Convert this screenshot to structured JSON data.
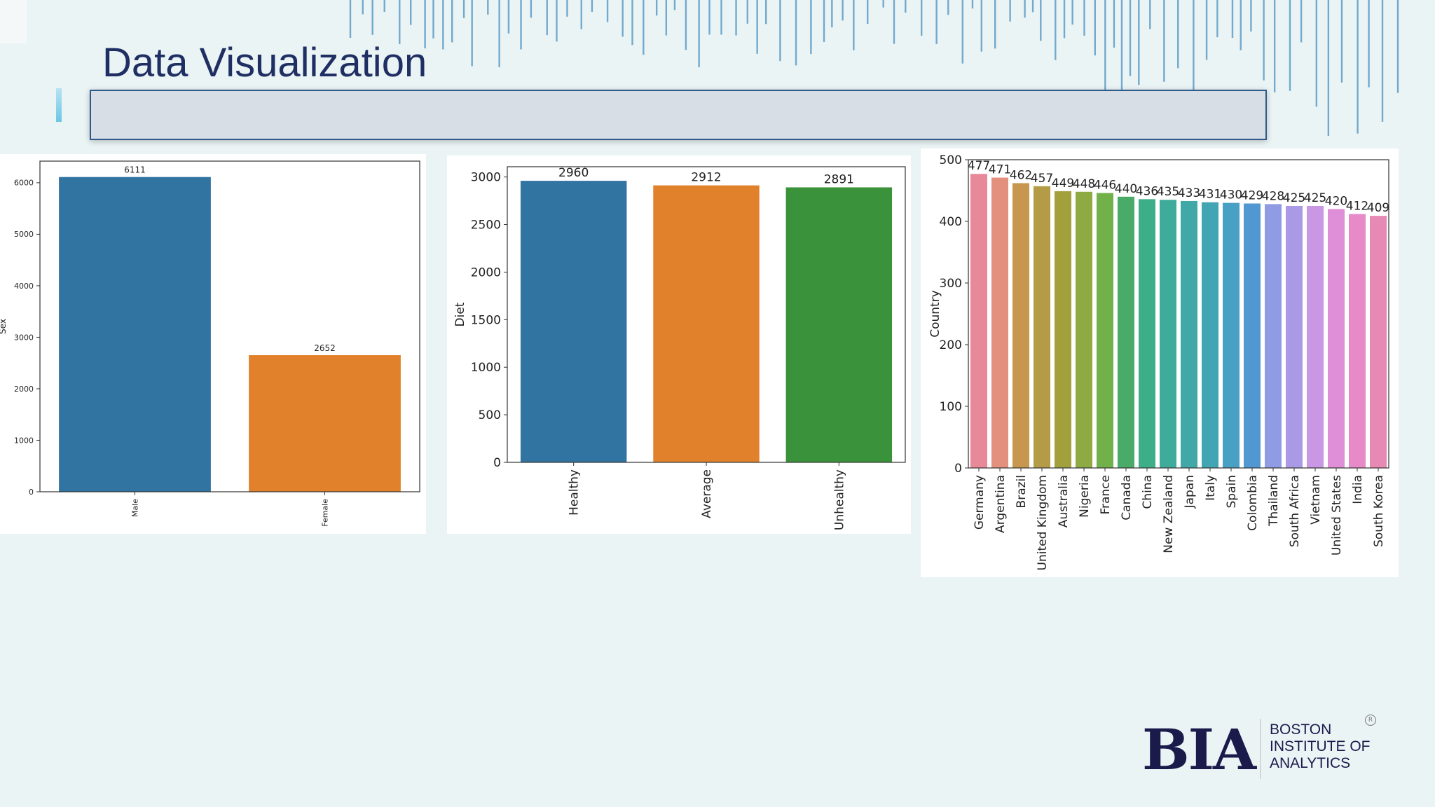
{
  "slide": {
    "title": "Data Visualization"
  },
  "logo": {
    "mark": "BIA",
    "lines": [
      "BOSTON",
      "INSTITUTE OF",
      "ANALYTICS"
    ],
    "registered": "R"
  },
  "chart_data": [
    {
      "type": "bar",
      "categories": [
        "Male",
        "Female"
      ],
      "values": [
        6111,
        2652
      ],
      "colors": [
        "#3274a1",
        "#e1812c"
      ],
      "ylabel": "Sex",
      "xlabel": "",
      "ylim": [
        0,
        6420
      ],
      "yticks": [
        0,
        1000,
        2000,
        3000,
        4000,
        5000,
        6000
      ],
      "data_labels": true,
      "grid": false
    },
    {
      "type": "bar",
      "categories": [
        "Healthy",
        "Average",
        "Unhealthy"
      ],
      "values": [
        2960,
        2912,
        2891
      ],
      "colors": [
        "#3274a1",
        "#e1812c",
        "#3a923a"
      ],
      "ylabel": "Diet",
      "xlabel": "",
      "ylim": [
        0,
        3108
      ],
      "yticks": [
        0,
        500,
        1000,
        1500,
        2000,
        2500,
        3000
      ],
      "data_labels": true,
      "grid": false
    },
    {
      "type": "bar",
      "categories": [
        "Germany",
        "Argentina",
        "Brazil",
        "United Kingdom",
        "Australia",
        "Nigeria",
        "France",
        "Canada",
        "China",
        "New Zealand",
        "Japan",
        "Italy",
        "Spain",
        "Colombia",
        "Thailand",
        "South Africa",
        "Vietnam",
        "United States",
        "India",
        "South Korea"
      ],
      "values": [
        477,
        471,
        462,
        457,
        449,
        448,
        446,
        440,
        436,
        435,
        433,
        431,
        430,
        429,
        428,
        425,
        425,
        420,
        412,
        409
      ],
      "colors": [
        "#e8899a",
        "#e3917e",
        "#c7974f",
        "#b39c45",
        "#a2a03d",
        "#8eaa42",
        "#72b04a",
        "#4aab68",
        "#3eae88",
        "#3fac9b",
        "#40a9a7",
        "#42a5b4",
        "#48a1c4",
        "#5198d3",
        "#8f9be3",
        "#aa99e5",
        "#c997e3",
        "#de8fd7",
        "#e68bc7",
        "#e689b3"
      ],
      "ylabel": "Country",
      "xlabel": "",
      "ylim": [
        0,
        500
      ],
      "yticks": [
        0,
        100,
        200,
        300,
        400,
        500
      ],
      "data_labels": true,
      "grid": false
    }
  ]
}
